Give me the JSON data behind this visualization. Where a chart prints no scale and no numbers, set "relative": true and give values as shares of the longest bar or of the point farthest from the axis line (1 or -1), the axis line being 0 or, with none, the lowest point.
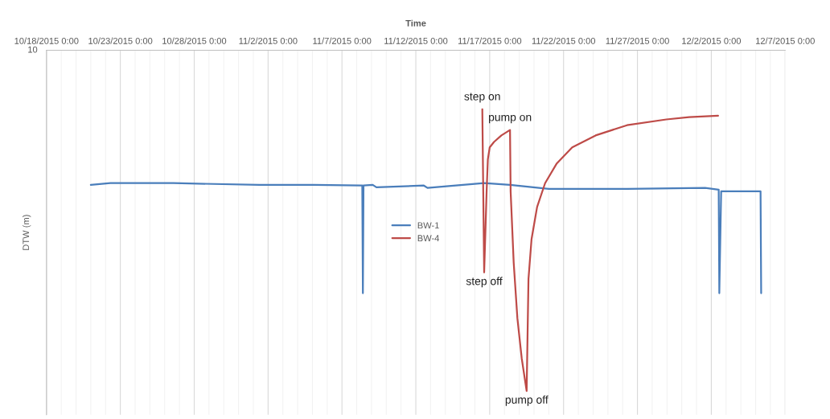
{
  "chart_data": {
    "type": "line",
    "xlabel": "Time",
    "ylabel": "DTW (m)",
    "relative": true,
    "grid": "x",
    "legend": "center",
    "line_style": "solid",
    "marker": "none",
    "xlim": [
      "2015-10-18",
      "2015-12-07"
    ],
    "xticks": [
      {
        "value": "2015-10-18",
        "label": "10/18/2015 0:00"
      },
      {
        "value": "2015-10-23",
        "label": "10/23/2015 0:00"
      },
      {
        "value": "2015-10-28",
        "label": "10/28/2015 0:00"
      },
      {
        "value": "2015-11-02",
        "label": "11/2/2015 0:00"
      },
      {
        "value": "2015-11-07",
        "label": "11/7/2015 0:00"
      },
      {
        "value": "2015-11-12",
        "label": "11/12/2015 0:00"
      },
      {
        "value": "2015-11-17",
        "label": "11/17/2015 0:00"
      },
      {
        "value": "2015-11-22",
        "label": "11/22/2015 0:00"
      },
      {
        "value": "2015-11-27",
        "label": "11/27/2015 0:00"
      },
      {
        "value": "2015-12-02",
        "label": "12/2/2015 0:00"
      },
      {
        "value": "2015-12-07",
        "label": "12/7/2015 0:00"
      }
    ],
    "series": [
      {
        "name": "BW-1",
        "color": "#4a7ebb",
        "x": [
          "2015-10-21T00:00",
          "2015-10-22T08:00",
          "2015-10-26T14:00",
          "2015-11-01T10:00",
          "2015-11-05T03:00",
          "2015-11-08T07:00",
          "2015-11-08T09:00",
          "2015-11-08T10:00",
          "2015-11-08T11:00",
          "2015-11-09T02:00",
          "2015-11-09T08:00",
          "2015-11-12T13:00",
          "2015-11-12T19:00",
          "2015-11-16T15:00",
          "2015-11-18T09:00",
          "2015-11-21T00:00",
          "2015-11-26T07:00",
          "2015-12-01T14:00",
          "2015-12-02T12:00",
          "2015-12-02T13:00",
          "2015-12-02T16:00",
          "2015-12-05T08:00",
          "2015-12-05T09:00"
        ],
        "values": [
          -0.395,
          -0.39,
          -0.39,
          -0.395,
          -0.395,
          -0.397,
          -0.397,
          -0.713,
          -0.397,
          -0.395,
          -0.402,
          -0.397,
          -0.404,
          -0.39,
          -0.395,
          -0.407,
          -0.407,
          -0.404,
          -0.409,
          -0.713,
          -0.414,
          -0.414,
          -0.713
        ]
      },
      {
        "name": "BW-4",
        "color": "#be4b48",
        "x": [
          "2015-11-16T12:00",
          "2015-11-16T15:00",
          "2015-11-16T19:00",
          "2015-11-16T21:00",
          "2015-11-17T00:00",
          "2015-11-17T07:00",
          "2015-11-17T19:00",
          "2015-11-18T09:00",
          "2015-11-18T10:00",
          "2015-11-18T15:00",
          "2015-11-18T21:00",
          "2015-11-19T04:00",
          "2015-11-19T12:00",
          "2015-11-19T15:00",
          "2015-11-19T20:00",
          "2015-11-20T05:00",
          "2015-11-20T18:00",
          "2015-11-21T13:00",
          "2015-11-22T14:00",
          "2015-11-24T04:00",
          "2015-11-26T07:00",
          "2015-11-28T23:00",
          "2015-11-30T12:00",
          "2015-12-02T11:00"
        ],
        "values": [
          -0.173,
          -0.652,
          -0.414,
          -0.32,
          -0.285,
          -0.269,
          -0.25,
          -0.234,
          -0.414,
          -0.624,
          -0.787,
          -0.904,
          -1.0,
          -0.671,
          -0.554,
          -0.46,
          -0.39,
          -0.332,
          -0.285,
          -0.25,
          -0.22,
          -0.203,
          -0.196,
          -0.192
        ]
      }
    ],
    "annotations": [
      "10",
      {
        "text": "step on",
        "x": "2015-11-16T12:00",
        "y": -0.173
      },
      {
        "text": "step off",
        "x": "2015-11-16T15:00",
        "y": -0.652
      },
      {
        "text": "pump on",
        "x": "2015-11-18T09:00",
        "y": -0.234
      },
      {
        "text": "pump off",
        "x": "2015-11-19T12:00",
        "y": -1.0
      }
    ]
  }
}
